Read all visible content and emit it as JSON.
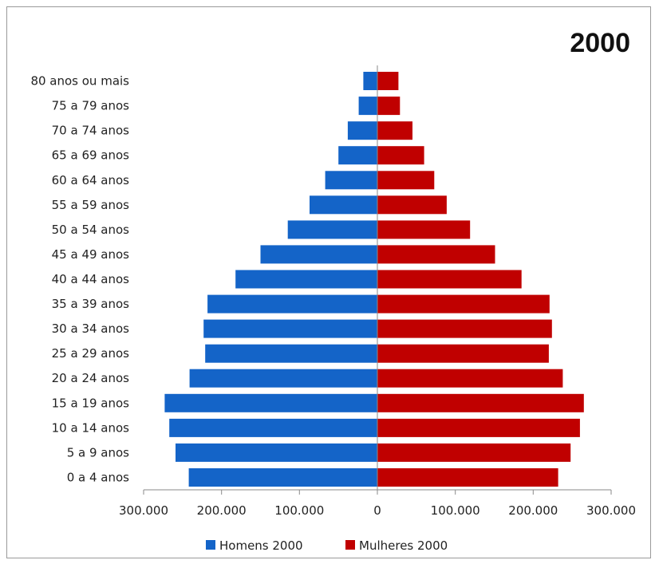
{
  "chart_data": {
    "type": "bar",
    "orientation": "horizontal",
    "title": "2000",
    "categories": [
      "0 a 4 anos",
      "5 a 9 anos",
      "10 a 14 anos",
      "15 a 19 anos",
      "20 a 24 anos",
      "25 a 29 anos",
      "30 a 34 anos",
      "35 a 39 anos",
      "40 a 44 anos",
      "45 a 49 anos",
      "50 a 54 anos",
      "55 a 59 anos",
      "60 a 64 anos",
      "65 a 69 anos",
      "70 a 74 anos",
      "75 a 79 anos",
      "80 anos ou mais"
    ],
    "series": [
      {
        "name": "Homens 2000",
        "color": "#1464C8",
        "values": [
          242000,
          259000,
          267000,
          273000,
          241000,
          221000,
          223000,
          218000,
          182000,
          150000,
          115000,
          87000,
          67000,
          50000,
          38000,
          24000,
          18000
        ]
      },
      {
        "name": "Mulheres 2000",
        "color": "#C00000",
        "values": [
          232000,
          248000,
          260000,
          265000,
          238000,
          220000,
          224000,
          221000,
          185000,
          151000,
          119000,
          89000,
          73000,
          60000,
          45000,
          29000,
          27000
        ]
      }
    ],
    "xlim": [
      -300000,
      300000
    ],
    "xticks": [
      {
        "value": -300000,
        "label": "300.000"
      },
      {
        "value": -200000,
        "label": "200.000"
      },
      {
        "value": -100000,
        "label": "100.000"
      },
      {
        "value": 0,
        "label": "0"
      },
      {
        "value": 100000,
        "label": "100.000"
      },
      {
        "value": 200000,
        "label": "200.000"
      },
      {
        "value": 300000,
        "label": "300.000"
      }
    ],
    "legend_position": "bottom",
    "grid": false
  }
}
